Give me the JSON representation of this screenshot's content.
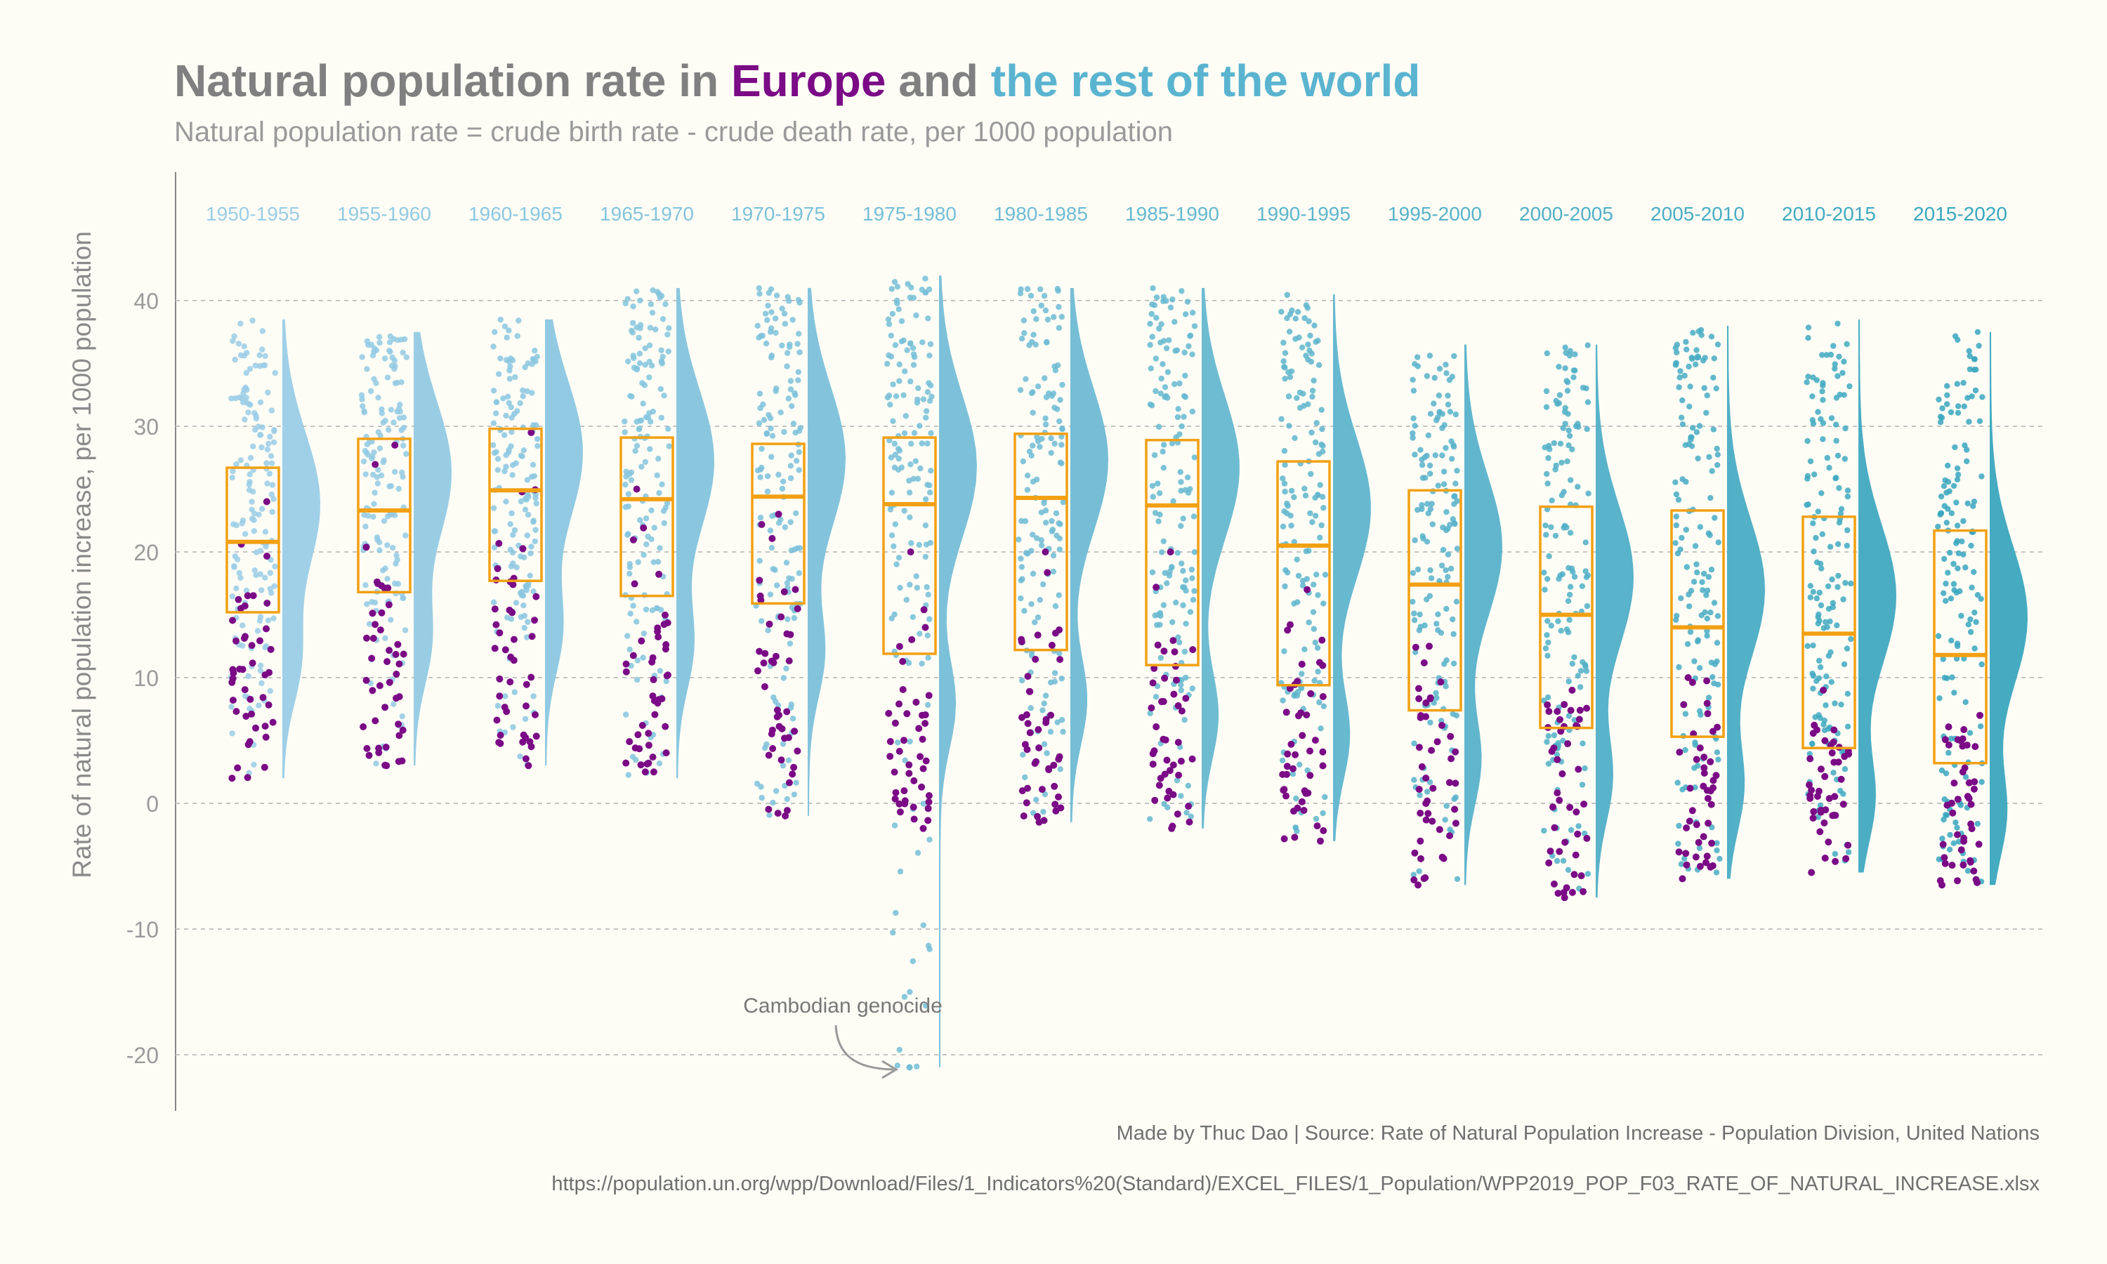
{
  "title": {
    "part1": "Natural population rate in ",
    "highlight1": "Europe",
    "part2": " and ",
    "highlight2": "the rest of the world"
  },
  "subtitle": "Natural population rate = crude birth rate - crude death rate, per 1000 population",
  "caption": {
    "line1": "Made by Thuc Dao | Source: Rate of Natural Population Increase - Population Division, United Nations",
    "line2": "https://population.un.org/wpp/Download/Files/1_Indicators%20(Standard)/EXCEL_FILES/1_Population/WPP2019_POP_F03_RATE_OF_NATURAL_INCREASE.xlsx"
  },
  "colors": {
    "europe": "#7a0a85",
    "world_start": "#9acde6",
    "world_end": "#3aa6be",
    "box": "#f2a013",
    "title_grey": "#808080"
  },
  "chart_data": {
    "type": "box-violin-jitter",
    "ylabel": "Rate of natural population increase, per 1000 population",
    "ylim": [
      -24,
      50
    ],
    "yticks": [
      -20,
      -10,
      0,
      10,
      20,
      30,
      40
    ],
    "grid": "horizontal dashed",
    "categories": [
      "1950-1955",
      "1955-1960",
      "1960-1965",
      "1965-1970",
      "1970-1975",
      "1975-1980",
      "1980-1985",
      "1985-1990",
      "1990-1995",
      "1995-2000",
      "2000-2005",
      "2005-2010",
      "2010-2015",
      "2015-2020"
    ],
    "series": [
      {
        "name": "Europe",
        "ranges": [
          [
            2,
            24
          ],
          [
            3,
            28.5
          ],
          [
            3,
            29.5
          ],
          [
            2.5,
            25
          ],
          [
            -1,
            23
          ],
          [
            -2,
            20
          ],
          [
            -1.5,
            20
          ],
          [
            -2,
            20
          ],
          [
            -3,
            17
          ],
          [
            -6.5,
            12.5
          ],
          [
            -7.5,
            9
          ],
          [
            -6,
            10
          ],
          [
            -5.5,
            9
          ],
          [
            -6.5,
            7
          ]
        ]
      },
      {
        "name": "Rest of the world",
        "ranges": [
          [
            2,
            38.5
          ],
          [
            3,
            37.5
          ],
          [
            3,
            38.5
          ],
          [
            2,
            41
          ],
          [
            -1,
            41
          ],
          [
            -21,
            42
          ],
          [
            -1.5,
            41
          ],
          [
            -2,
            41
          ],
          [
            -3,
            40.5
          ],
          [
            -6.5,
            36.5
          ],
          [
            -7.5,
            36.5
          ],
          [
            -6,
            38
          ],
          [
            -5.5,
            38.5
          ],
          [
            -6.5,
            37.5
          ]
        ]
      }
    ],
    "boxes": [
      {
        "q1": 15.2,
        "median": 20.8,
        "q3": 26.7
      },
      {
        "q1": 16.8,
        "median": 23.3,
        "q3": 29.0
      },
      {
        "q1": 17.7,
        "median": 24.9,
        "q3": 29.8
      },
      {
        "q1": 16.5,
        "median": 24.2,
        "q3": 29.1
      },
      {
        "q1": 15.9,
        "median": 24.4,
        "q3": 28.6
      },
      {
        "q1": 11.9,
        "median": 23.8,
        "q3": 29.1
      },
      {
        "q1": 12.2,
        "median": 24.3,
        "q3": 29.4
      },
      {
        "q1": 11.0,
        "median": 23.7,
        "q3": 28.9
      },
      {
        "q1": 9.4,
        "median": 20.5,
        "q3": 27.2
      },
      {
        "q1": 7.4,
        "median": 17.4,
        "q3": 24.9
      },
      {
        "q1": 6.0,
        "median": 15.0,
        "q3": 23.6
      },
      {
        "q1": 5.3,
        "median": 14.0,
        "q3": 23.3
      },
      {
        "q1": 4.4,
        "median": 13.5,
        "q3": 22.8
      },
      {
        "q1": 3.2,
        "median": 11.8,
        "q3": 21.7
      }
    ],
    "annotation": {
      "text": "Cambodian genocide",
      "category": "1975-1980",
      "y": -21
    }
  }
}
